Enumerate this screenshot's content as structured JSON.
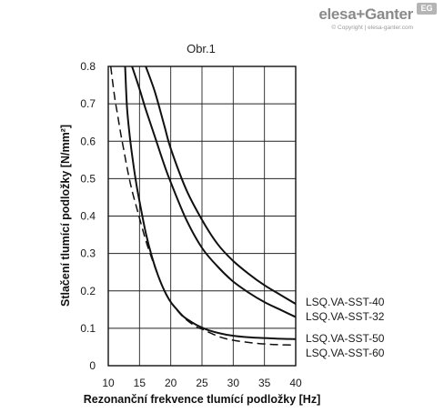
{
  "brand": {
    "name": "elesa+Ganter",
    "badge": "EG",
    "copyright": "© Copyright | elesa-ganter.com"
  },
  "chart_data": {
    "type": "line",
    "title": "Obr.1",
    "xlabel": "Rezonanční frekvence tlumící podložky [Hz]",
    "ylabel": "Stlačení tlumící podložky [N/mm²]",
    "xlim": [
      10,
      40
    ],
    "ylim": [
      0,
      0.8
    ],
    "xticks": [
      10,
      15,
      20,
      25,
      30,
      35,
      40
    ],
    "yticks": [
      0,
      0.1,
      0.2,
      0.3,
      0.4,
      0.5,
      0.6,
      0.7,
      0.8
    ],
    "grid": true,
    "legend_placement": "right of plot, beside curve ends",
    "series": [
      {
        "name": "LSQ.VA-SST-40",
        "style": "solid",
        "x": [
          16.0,
          17.5,
          19.0,
          20.0,
          22.5,
          25.0,
          27.5,
          30.0,
          32.5,
          35.0,
          37.5,
          40.0
        ],
        "y": [
          0.8,
          0.73,
          0.64,
          0.58,
          0.47,
          0.39,
          0.325,
          0.28,
          0.245,
          0.215,
          0.19,
          0.165
        ]
      },
      {
        "name": "LSQ.VA-SST-32",
        "style": "solid",
        "x": [
          13.8,
          15.0,
          16.0,
          17.5,
          19.0,
          20.0,
          22.5,
          25.0,
          27.5,
          30.0,
          32.5,
          35.0,
          37.5,
          40.0
        ],
        "y": [
          0.8,
          0.74,
          0.685,
          0.61,
          0.535,
          0.49,
          0.39,
          0.315,
          0.265,
          0.225,
          0.195,
          0.17,
          0.15,
          0.13
        ]
      },
      {
        "name": "LSQ.VA-SST-50",
        "style": "solid",
        "x": [
          12.7,
          13.0,
          13.5,
          14.0,
          14.5,
          15.0,
          16.0,
          17.0,
          18.0,
          19.0,
          20.0,
          21.0,
          22.0,
          23.0,
          24.0,
          25.0,
          26.0,
          28.0,
          30.0,
          32.5,
          35.0,
          37.5,
          40.0
        ],
        "y": [
          0.8,
          0.69,
          0.605,
          0.54,
          0.485,
          0.44,
          0.355,
          0.29,
          0.24,
          0.2,
          0.17,
          0.15,
          0.132,
          0.12,
          0.11,
          0.102,
          0.095,
          0.086,
          0.08,
          0.076,
          0.074,
          0.072,
          0.071
        ]
      },
      {
        "name": "LSQ.VA-SST-60",
        "style": "dashed",
        "x": [
          10.4,
          11.0,
          11.5,
          12.0,
          12.5,
          13.0,
          13.5,
          14.0,
          14.5,
          15.0,
          16.0,
          17.0,
          18.0,
          19.0,
          20.0,
          22.0,
          24.0,
          25.0,
          26.0,
          28.0,
          30.0,
          32.5,
          35.0,
          37.5,
          40.0
        ],
        "y": [
          0.8,
          0.72,
          0.67,
          0.62,
          0.575,
          0.53,
          0.49,
          0.455,
          0.425,
          0.395,
          0.335,
          0.285,
          0.24,
          0.2,
          0.17,
          0.13,
          0.105,
          0.098,
          0.09,
          0.076,
          0.068,
          0.062,
          0.058,
          0.056,
          0.055
        ]
      }
    ]
  }
}
